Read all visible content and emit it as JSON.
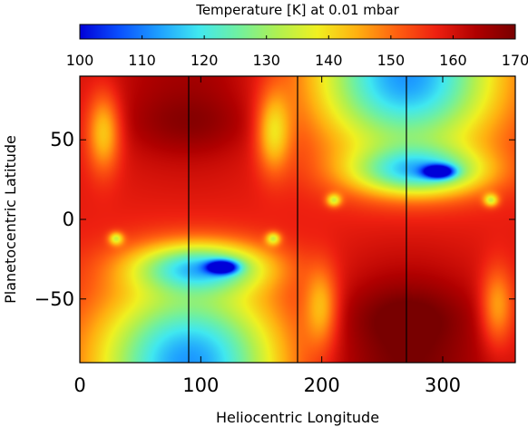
{
  "chart_data": {
    "type": "heatmap",
    "colorbar": {
      "title": "Temperature [K] at 0.01 mbar",
      "range": [
        100,
        170
      ],
      "ticks": [
        100,
        110,
        120,
        130,
        140,
        150,
        160,
        170
      ],
      "colormap": [
        "#0000d8",
        "#0a50ff",
        "#1ea0ff",
        "#40e8f0",
        "#70f0a0",
        "#b0f050",
        "#f0f020",
        "#ffb010",
        "#ff6010",
        "#ee2010",
        "#b00000",
        "#780000"
      ]
    },
    "xlabel": "Heliocentric Longitude",
    "ylabel": "Planetocentric Latitude",
    "xlim": [
      0,
      360
    ],
    "ylim": [
      -90,
      90
    ],
    "xticks": [
      0,
      100,
      200,
      300
    ],
    "yticks": [
      -50,
      0,
      50
    ],
    "vertical_lines_x": [
      90,
      180,
      270
    ],
    "background_K": 158,
    "features": [
      {
        "x": 90,
        "y": 90,
        "sx": 70,
        "sy": 60,
        "value_K": 165
      },
      {
        "x": 90,
        "y": 60,
        "sx": 52,
        "sy": 18,
        "value_K": 163
      },
      {
        "x": 20,
        "y": 55,
        "sx": 14,
        "sy": 25,
        "value_K": 140
      },
      {
        "x": 160,
        "y": 55,
        "sx": 14,
        "sy": 25,
        "value_K": 140
      },
      {
        "x": 90,
        "y": -90,
        "sx": 75,
        "sy": 50,
        "value_K": 112
      },
      {
        "x": 100,
        "y": -30,
        "sx": 55,
        "sy": 15,
        "value_K": 125
      },
      {
        "x": 118,
        "y": -30,
        "sx": 12,
        "sy": 4,
        "value_K": 115
      },
      {
        "x": 30,
        "y": -12,
        "sx": 6,
        "sy": 4,
        "value_K": 138
      },
      {
        "x": 160,
        "y": -12,
        "sx": 6,
        "sy": 4,
        "value_K": 138
      },
      {
        "x": 270,
        "y": 90,
        "sx": 75,
        "sy": 50,
        "value_K": 112
      },
      {
        "x": 280,
        "y": 30,
        "sx": 55,
        "sy": 15,
        "value_K": 125
      },
      {
        "x": 297,
        "y": 30,
        "sx": 12,
        "sy": 4,
        "value_K": 115
      },
      {
        "x": 210,
        "y": 12,
        "sx": 6,
        "sy": 4,
        "value_K": 138
      },
      {
        "x": 340,
        "y": 12,
        "sx": 6,
        "sy": 4,
        "value_K": 138
      },
      {
        "x": 270,
        "y": -90,
        "sx": 70,
        "sy": 60,
        "value_K": 170
      },
      {
        "x": 270,
        "y": -60,
        "sx": 52,
        "sy": 18,
        "value_K": 163
      },
      {
        "x": 200,
        "y": -55,
        "sx": 14,
        "sy": 25,
        "value_K": 143
      },
      {
        "x": 345,
        "y": -55,
        "sx": 14,
        "sy": 25,
        "value_K": 143
      }
    ]
  }
}
